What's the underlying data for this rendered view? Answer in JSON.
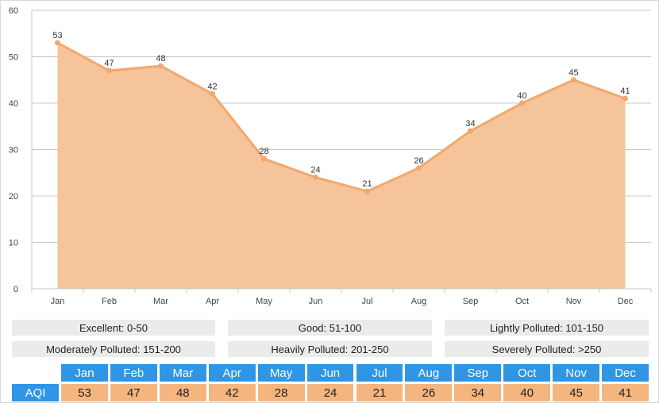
{
  "chart_data": {
    "type": "area",
    "categories": [
      "Jan",
      "Feb",
      "Mar",
      "Apr",
      "May",
      "Jun",
      "Jul",
      "Aug",
      "Sep",
      "Oct",
      "Nov",
      "Dec"
    ],
    "values": [
      53,
      47,
      48,
      42,
      28,
      24,
      21,
      26,
      34,
      40,
      45,
      41
    ],
    "ylim": [
      0,
      60
    ],
    "yticks": [
      0,
      10,
      20,
      30,
      40,
      50,
      60
    ],
    "grid": true,
    "title": "",
    "xlabel": "",
    "ylabel": ""
  },
  "colors": {
    "area_fill": "#f5c49a",
    "line": "#f2a86c",
    "grid": "#c8c8c8",
    "table_header": "#2f96e6",
    "table_value": "#f5b57f",
    "legend_bg": "#ebebeb"
  },
  "legend": [
    "Excellent: 0-50",
    "Good: 51-100",
    "Lightly Polluted: 101-150",
    "Moderately Polluted: 151-200",
    "Heavily Polluted: 201-250",
    "Severely Polluted: >250"
  ],
  "table": {
    "row_label": "AQI",
    "months": [
      "Jan",
      "Feb",
      "Mar",
      "Apr",
      "May",
      "Jun",
      "Jul",
      "Aug",
      "Sep",
      "Oct",
      "Nov",
      "Dec"
    ],
    "values": [
      "53",
      "47",
      "48",
      "42",
      "28",
      "24",
      "21",
      "26",
      "34",
      "40",
      "45",
      "41"
    ]
  }
}
